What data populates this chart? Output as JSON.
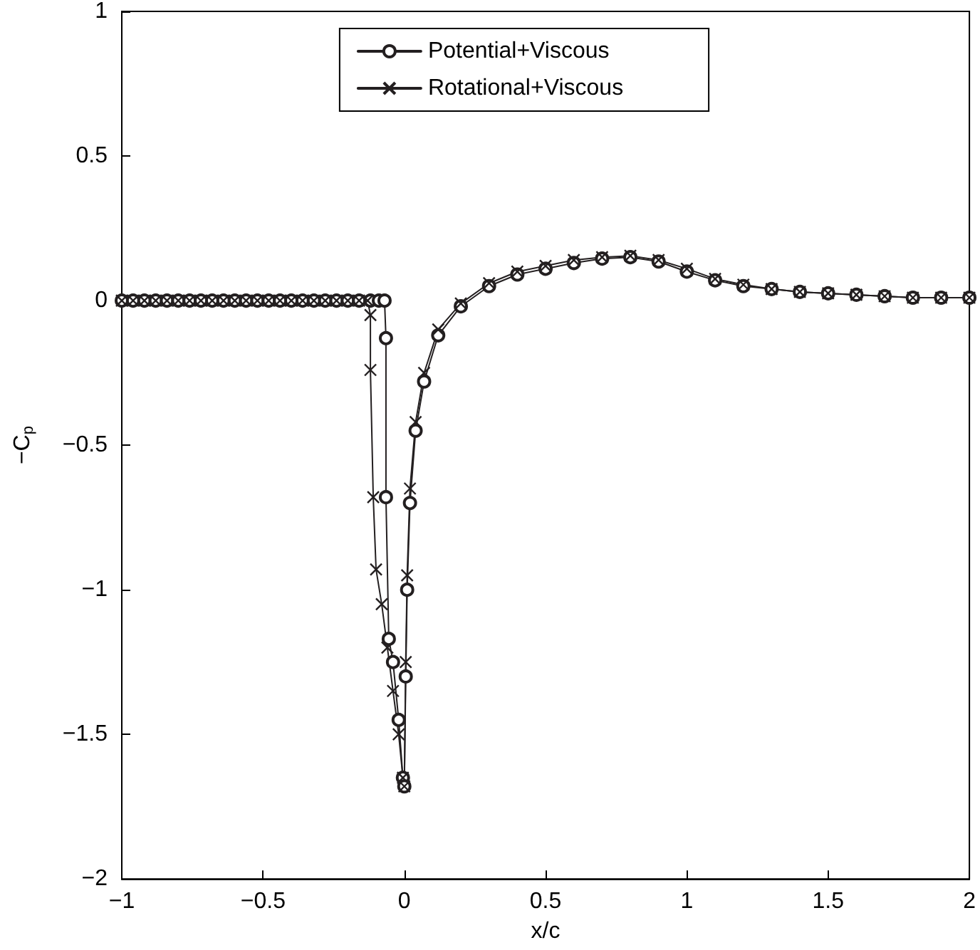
{
  "chart_data": {
    "type": "line",
    "xlabel": "x/c",
    "ylabel": "−C$_{p}$",
    "xlim": [
      -1,
      2
    ],
    "ylim": [
      -2,
      1
    ],
    "xticks": [
      -1,
      -0.5,
      0,
      0.5,
      1,
      1.5,
      2
    ],
    "yticks": [
      -2,
      -1.5,
      -1,
      -0.5,
      0,
      0.5,
      1
    ],
    "legend": "top",
    "grid": false,
    "line_style": "solid",
    "series": [
      {
        "name": "Potential+Viscous",
        "color": "#231f20",
        "marker": "circle",
        "x": [
          -1,
          -0.96,
          -0.92,
          -0.88,
          -0.84,
          -0.8,
          -0.76,
          -0.72,
          -0.68,
          -0.64,
          -0.6,
          -0.56,
          -0.52,
          -0.48,
          -0.44,
          -0.4,
          -0.36,
          -0.32,
          -0.28,
          -0.24,
          -0.2,
          -0.16,
          -0.12,
          -0.09,
          -0.07,
          -0.065,
          -0.065,
          -0.055,
          -0.04,
          -0.02,
          -0.005,
          0,
          0.005,
          0.01,
          0.02,
          0.04,
          0.07,
          0.12,
          0.2,
          0.3,
          0.4,
          0.5,
          0.6,
          0.7,
          0.8,
          0.9,
          1,
          1.1,
          1.2,
          1.3,
          1.4,
          1.5,
          1.6,
          1.7,
          1.8,
          1.9,
          2
        ],
        "values": [
          0,
          0,
          0,
          0,
          0,
          0,
          0,
          0,
          0,
          0,
          0,
          0,
          0,
          0,
          0,
          0,
          0,
          0,
          0,
          0,
          0,
          0,
          0,
          0,
          0,
          -0.13,
          -0.68,
          -1.17,
          -1.25,
          -1.45,
          -1.65,
          -1.68,
          -1.3,
          -1,
          -0.7,
          -0.45,
          -0.28,
          -0.12,
          -0.02,
          0.05,
          0.09,
          0.11,
          0.13,
          0.145,
          0.15,
          0.135,
          0.1,
          0.07,
          0.05,
          0.04,
          0.03,
          0.025,
          0.02,
          0.015,
          0.01,
          0.01,
          0.01
        ]
      },
      {
        "name": "Rotational+Viscous",
        "color": "#231f20",
        "marker": "cross",
        "x": [
          -1,
          -0.96,
          -0.92,
          -0.88,
          -0.84,
          -0.8,
          -0.76,
          -0.72,
          -0.68,
          -0.64,
          -0.6,
          -0.56,
          -0.52,
          -0.48,
          -0.44,
          -0.4,
          -0.36,
          -0.32,
          -0.28,
          -0.24,
          -0.2,
          -0.16,
          -0.13,
          -0.12,
          -0.12,
          -0.11,
          -0.1,
          -0.08,
          -0.06,
          -0.04,
          -0.02,
          -0.005,
          0,
          0.005,
          0.01,
          0.02,
          0.04,
          0.07,
          0.12,
          0.2,
          0.3,
          0.4,
          0.5,
          0.6,
          0.7,
          0.8,
          0.9,
          1,
          1.1,
          1.2,
          1.3,
          1.4,
          1.5,
          1.6,
          1.7,
          1.8,
          1.9,
          2
        ],
        "values": [
          0,
          0,
          0,
          0,
          0,
          0,
          0,
          0,
          0,
          0,
          0,
          0,
          0,
          0,
          0,
          0,
          0,
          0,
          0,
          0,
          0,
          0,
          0,
          -0.05,
          -0.24,
          -0.68,
          -0.93,
          -1.05,
          -1.2,
          -1.35,
          -1.5,
          -1.65,
          -1.68,
          -1.25,
          -0.95,
          -0.65,
          -0.42,
          -0.25,
          -0.1,
          -0.01,
          0.06,
          0.1,
          0.12,
          0.14,
          0.15,
          0.155,
          0.14,
          0.11,
          0.075,
          0.055,
          0.04,
          0.03,
          0.025,
          0.02,
          0.015,
          0.01,
          0.01,
          0.01
        ]
      }
    ]
  }
}
